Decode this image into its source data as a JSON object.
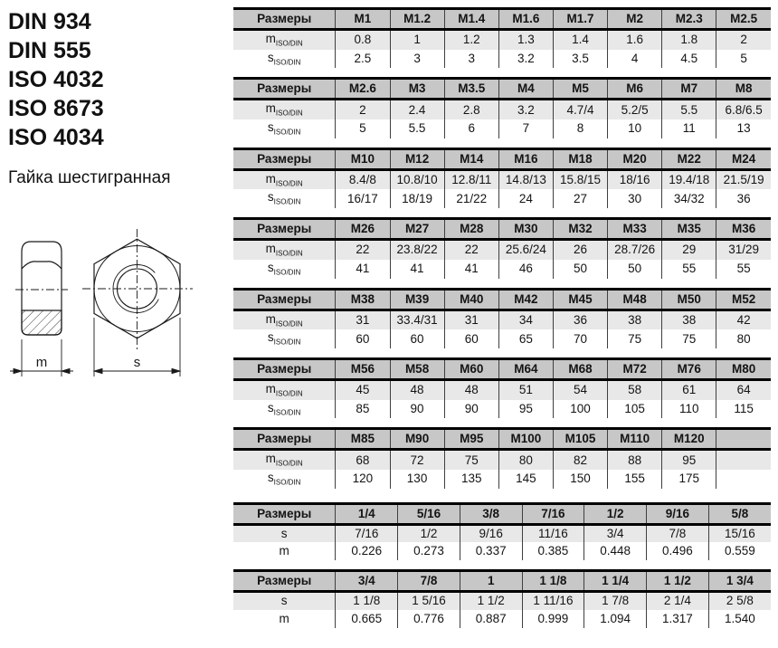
{
  "left": {
    "standards": [
      "DIN 934",
      "DIN 555",
      "ISO 4032",
      "ISO 8673",
      "ISO 4034"
    ],
    "product_name": "Гайка шестигранная",
    "drawing": {
      "dim_m": "m",
      "dim_s": "s"
    }
  },
  "colors": {
    "table_header_bg": "#c7c7c7",
    "shaded_row_bg": "#e8e8e8",
    "thick_border": "#000000",
    "grid_line": "#3f3f3f"
  },
  "tables": [
    {
      "header": [
        "Размеры",
        "M1",
        "M1.2",
        "M1.4",
        "M1.6",
        "M1.7",
        "M2",
        "M2.3",
        "M2.5"
      ],
      "rows": [
        {
          "label": "m",
          "sub": "ISO/DIN",
          "values": [
            "0.8",
            "1",
            "1.2",
            "1.3",
            "1.4",
            "1.6",
            "1.8",
            "2"
          ]
        },
        {
          "label": "s",
          "sub": "ISO/DIN",
          "values": [
            "2.5",
            "3",
            "3",
            "3.2",
            "3.5",
            "4",
            "4.5",
            "5"
          ]
        }
      ]
    },
    {
      "header": [
        "Размеры",
        "M2.6",
        "M3",
        "M3.5",
        "M4",
        "M5",
        "M6",
        "M7",
        "M8"
      ],
      "rows": [
        {
          "label": "m",
          "sub": "ISO/DIN",
          "values": [
            "2",
            "2.4",
            "2.8",
            "3.2",
            "4.7/4",
            "5.2/5",
            "5.5",
            "6.8/6.5"
          ]
        },
        {
          "label": "s",
          "sub": "ISO/DIN",
          "values": [
            "5",
            "5.5",
            "6",
            "7",
            "8",
            "10",
            "11",
            "13"
          ]
        }
      ]
    },
    {
      "header": [
        "Размеры",
        "M10",
        "M12",
        "M14",
        "M16",
        "M18",
        "M20",
        "M22",
        "M24"
      ],
      "rows": [
        {
          "label": "m",
          "sub": "ISO/DIN",
          "values": [
            "8.4/8",
            "10.8/10",
            "12.8/11",
            "14.8/13",
            "15.8/15",
            "18/16",
            "19.4/18",
            "21.5/19"
          ]
        },
        {
          "label": "s",
          "sub": "ISO/DIN",
          "values": [
            "16/17",
            "18/19",
            "21/22",
            "24",
            "27",
            "30",
            "34/32",
            "36"
          ]
        }
      ]
    },
    {
      "header": [
        "Размеры",
        "M26",
        "M27",
        "M28",
        "M30",
        "M32",
        "M33",
        "M35",
        "M36"
      ],
      "rows": [
        {
          "label": "m",
          "sub": "ISO/DIN",
          "values": [
            "22",
            "23.8/22",
            "22",
            "25.6/24",
            "26",
            "28.7/26",
            "29",
            "31/29"
          ]
        },
        {
          "label": "s",
          "sub": "ISO/DIN",
          "values": [
            "41",
            "41",
            "41",
            "46",
            "50",
            "50",
            "55",
            "55"
          ]
        }
      ]
    },
    {
      "header": [
        "Размеры",
        "M38",
        "M39",
        "M40",
        "M42",
        "M45",
        "M48",
        "M50",
        "M52"
      ],
      "rows": [
        {
          "label": "m",
          "sub": "ISO/DIN",
          "values": [
            "31",
            "33.4/31",
            "31",
            "34",
            "36",
            "38",
            "38",
            "42"
          ]
        },
        {
          "label": "s",
          "sub": "ISO/DIN",
          "values": [
            "60",
            "60",
            "60",
            "65",
            "70",
            "75",
            "75",
            "80"
          ]
        }
      ]
    },
    {
      "header": [
        "Размеры",
        "M56",
        "M58",
        "M60",
        "M64",
        "M68",
        "M72",
        "M76",
        "M80"
      ],
      "rows": [
        {
          "label": "m",
          "sub": "ISO/DIN",
          "values": [
            "45",
            "48",
            "48",
            "51",
            "54",
            "58",
            "61",
            "64"
          ]
        },
        {
          "label": "s",
          "sub": "ISO/DIN",
          "values": [
            "85",
            "90",
            "90",
            "95",
            "100",
            "105",
            "110",
            "115"
          ]
        }
      ]
    },
    {
      "header": [
        "Размеры",
        "M85",
        "M90",
        "M95",
        "M100",
        "M105",
        "M110",
        "M120",
        ""
      ],
      "rows": [
        {
          "label": "m",
          "sub": "ISO/DIN",
          "values": [
            "68",
            "72",
            "75",
            "80",
            "82",
            "88",
            "95",
            ""
          ]
        },
        {
          "label": "s",
          "sub": "ISO/DIN",
          "values": [
            "120",
            "130",
            "135",
            "145",
            "150",
            "155",
            "175",
            ""
          ]
        }
      ]
    },
    {
      "header": [
        "Размеры",
        "1/4",
        "5/16",
        "3/8",
        "7/16",
        "1/2",
        "9/16",
        "5/8"
      ],
      "rows": [
        {
          "label": "s",
          "sub": "",
          "values": [
            "7/16",
            "1/2",
            "9/16",
            "11/16",
            "3/4",
            "7/8",
            "15/16"
          ]
        },
        {
          "label": "m",
          "sub": "",
          "values": [
            "0.226",
            "0.273",
            "0.337",
            "0.385",
            "0.448",
            "0.496",
            "0.559"
          ]
        }
      ]
    },
    {
      "header": [
        "Размеры",
        "3/4",
        "7/8",
        "1",
        "1 1/8",
        "1 1/4",
        "1 1/2",
        "1 3/4"
      ],
      "rows": [
        {
          "label": "s",
          "sub": "",
          "values": [
            "1 1/8",
            "1 5/16",
            "1 1/2",
            "1 11/16",
            "1 7/8",
            "2 1/4",
            "2 5/8"
          ]
        },
        {
          "label": "m",
          "sub": "",
          "values": [
            "0.665",
            "0.776",
            "0.887",
            "0.999",
            "1.094",
            "1.317",
            "1.540"
          ]
        }
      ]
    }
  ]
}
